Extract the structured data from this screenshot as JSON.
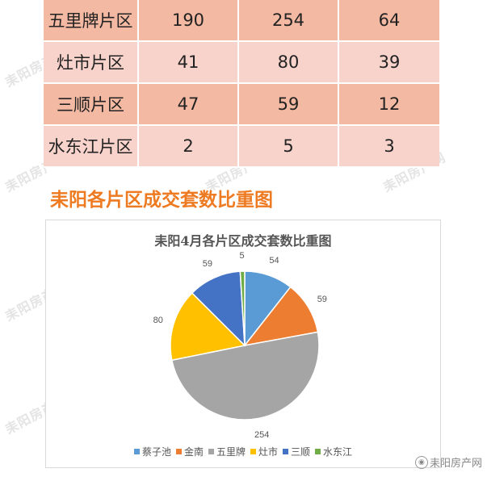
{
  "table": {
    "rows": [
      {
        "name": "五里牌片区",
        "values": [
          "190",
          "254",
          "64"
        ]
      },
      {
        "name": "灶市片区",
        "values": [
          "41",
          "80",
          "39"
        ]
      },
      {
        "name": "三顺片区",
        "values": [
          "47",
          "59",
          "12"
        ]
      },
      {
        "name": "水东江片区",
        "values": [
          "2",
          "5",
          "3"
        ]
      }
    ]
  },
  "section_title": "耒阳各片区成交套数比重图",
  "chart_data": {
    "type": "pie",
    "title": "耒阳4月各片区成交套数比重图",
    "categories": [
      "蔡子池",
      "金南",
      "五里牌",
      "灶市",
      "三顺",
      "水东江"
    ],
    "values": [
      54,
      59,
      254,
      80,
      59,
      5
    ],
    "colors": [
      "#5b9bd5",
      "#ed7d31",
      "#a5a5a5",
      "#ffc000",
      "#4472c4",
      "#70ad47"
    ],
    "legend": "bottom"
  },
  "brand": {
    "text": "耒阳房产网",
    "icon": "weibo-icon"
  },
  "watermark": "耒阳房产网"
}
